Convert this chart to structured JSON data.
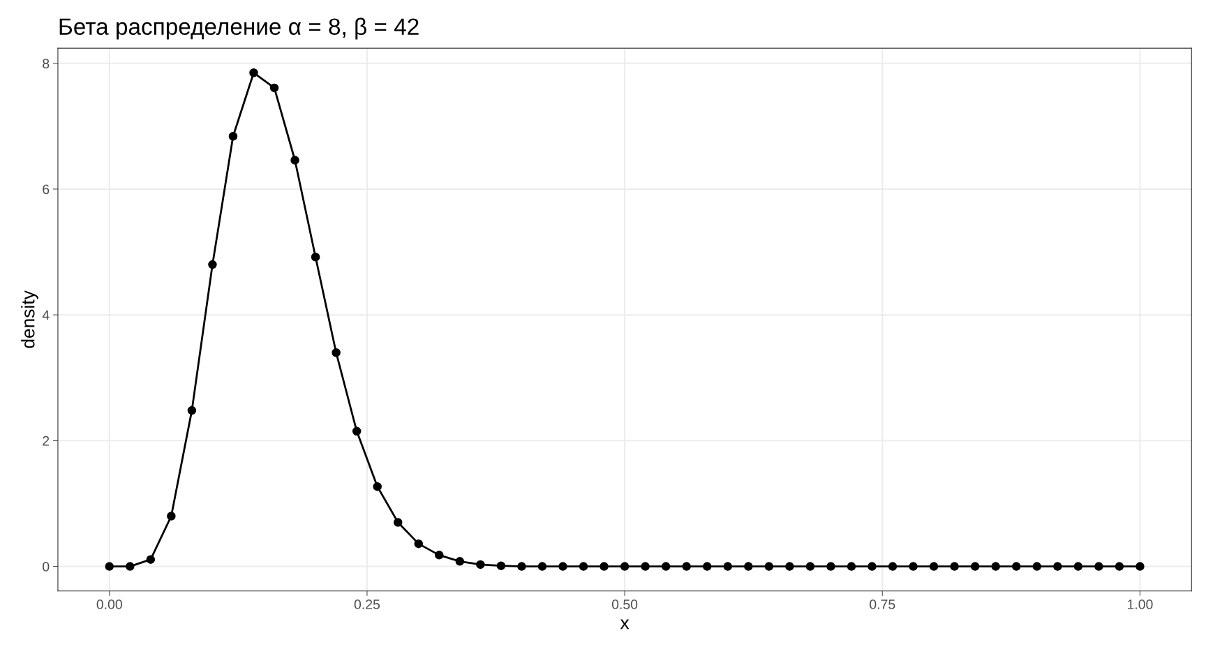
{
  "chart_data": {
    "type": "line",
    "title": "Бета распределение α = 8, β = 42",
    "xlabel": "x",
    "ylabel": "density",
    "x": [
      0,
      0.02,
      0.04,
      0.06,
      0.08,
      0.1,
      0.12,
      0.14,
      0.16,
      0.18,
      0.2,
      0.22,
      0.24,
      0.26,
      0.28,
      0.3,
      0.32,
      0.34,
      0.36,
      0.38,
      0.4,
      0.42,
      0.44,
      0.46,
      0.48,
      0.5,
      0.52,
      0.54,
      0.56,
      0.58,
      0.6,
      0.62,
      0.64,
      0.66,
      0.68,
      0.7,
      0.72,
      0.74,
      0.76,
      0.78,
      0.8,
      0.82,
      0.84,
      0.86,
      0.88,
      0.9,
      0.92,
      0.94,
      0.96,
      0.98,
      1.0
    ],
    "series": [
      {
        "color": "#000000",
        "values": [
          0,
          0,
          0.11,
          0.8,
          2.48,
          4.8,
          6.84,
          7.85,
          7.61,
          6.46,
          4.92,
          3.4,
          2.15,
          1.27,
          0.7,
          0.36,
          0.18,
          0.08,
          0.03,
          0.01,
          0,
          0,
          0,
          0,
          0,
          0,
          0,
          0,
          0,
          0,
          0,
          0,
          0,
          0,
          0,
          0,
          0,
          0,
          0,
          0,
          0,
          0,
          0,
          0,
          0,
          0,
          0,
          0,
          0,
          0,
          0
        ]
      }
    ],
    "xlim": [
      -0.05,
      1.05
    ],
    "ylim": [
      -0.39,
      8.24
    ],
    "xticks": [
      {
        "value": 0,
        "label": "0.00"
      },
      {
        "value": 0.25,
        "label": "0.25"
      },
      {
        "value": 0.5,
        "label": "0.50"
      },
      {
        "value": 0.75,
        "label": "0.75"
      },
      {
        "value": 1,
        "label": "1.00"
      }
    ],
    "yticks": [
      0,
      2,
      4,
      6,
      8
    ],
    "grid": true,
    "marker": "circle",
    "line_style": "solid"
  }
}
